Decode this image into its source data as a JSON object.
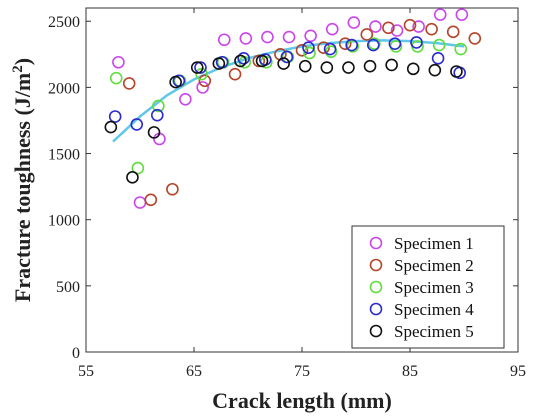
{
  "chart_data": {
    "type": "scatter",
    "xlabel": "Crack length (mm)",
    "ylabel": "Fracture toughness (J/m²)",
    "xlim": [
      55,
      95
    ],
    "ylim": [
      0,
      2600
    ],
    "xticks": [
      55,
      65,
      75,
      85,
      95
    ],
    "yticks": [
      0,
      500,
      1000,
      1500,
      2000,
      2500
    ],
    "grid": false,
    "legend_position": "bottom-right",
    "series": [
      {
        "name": "Specimen 1",
        "color": "#cc44ee",
        "x": [
          58.0,
          60.0,
          61.8,
          64.2,
          65.8,
          67.8,
          69.8,
          71.8,
          73.8,
          75.8,
          77.8,
          79.8,
          81.8,
          83.8,
          85.8,
          87.8,
          89.8
        ],
        "y": [
          2190,
          1130,
          1610,
          1910,
          2000,
          2360,
          2370,
          2380,
          2380,
          2390,
          2440,
          2490,
          2460,
          2430,
          2460,
          2550,
          2550
        ]
      },
      {
        "name": "Specimen 2",
        "color": "#b5442a",
        "x": [
          59.0,
          61.0,
          63.0,
          66.0,
          68.8,
          71.0,
          73.0,
          75.0,
          77.0,
          79.0,
          81.0,
          83.0,
          85.0,
          87.0,
          89.0,
          91.0
        ],
        "y": [
          2030,
          1150,
          1230,
          2050,
          2100,
          2200,
          2250,
          2280,
          2300,
          2330,
          2400,
          2450,
          2470,
          2440,
          2420,
          2370
        ]
      },
      {
        "name": "Specimen 3",
        "color": "#5fdd3a",
        "x": [
          57.8,
          59.8,
          61.7,
          63.7,
          65.7,
          67.7,
          69.7,
          71.7,
          73.7,
          75.7,
          77.7,
          79.7,
          81.7,
          83.7,
          85.7,
          87.7,
          89.7
        ],
        "y": [
          2070,
          1390,
          1860,
          2050,
          2100,
          2190,
          2190,
          2190,
          2230,
          2260,
          2270,
          2310,
          2330,
          2310,
          2310,
          2320,
          2290
        ]
      },
      {
        "name": "Specimen 4",
        "color": "#2a2ad4",
        "x": [
          57.7,
          59.7,
          61.6,
          63.6,
          65.6,
          67.6,
          69.6,
          71.6,
          73.6,
          75.6,
          77.6,
          79.6,
          81.6,
          83.6,
          85.6,
          87.6,
          89.6
        ],
        "y": [
          1780,
          1720,
          1790,
          2050,
          2150,
          2190,
          2220,
          2210,
          2230,
          2300,
          2290,
          2320,
          2320,
          2330,
          2340,
          2220,
          2110
        ]
      },
      {
        "name": "Specimen 5",
        "color": "#111111",
        "x": [
          57.3,
          59.3,
          61.3,
          63.3,
          65.3,
          67.3,
          69.3,
          71.3,
          73.3,
          75.3,
          77.3,
          79.3,
          81.3,
          83.3,
          85.3,
          87.3,
          89.3
        ],
        "y": [
          1700,
          1320,
          1660,
          2040,
          2150,
          2180,
          2200,
          2200,
          2180,
          2160,
          2150,
          2150,
          2160,
          2170,
          2140,
          2130,
          2120
        ]
      }
    ],
    "fit_curve": {
      "color": "#5fc8e8",
      "x": [
        57.5,
        60,
        62.5,
        65,
        67.5,
        70,
        72.5,
        75,
        77.5,
        80,
        82.5,
        85,
        87.5,
        90
      ],
      "y": [
        1590,
        1780,
        1940,
        2060,
        2150,
        2220,
        2270,
        2310,
        2335,
        2350,
        2355,
        2350,
        2335,
        2310
      ]
    }
  }
}
